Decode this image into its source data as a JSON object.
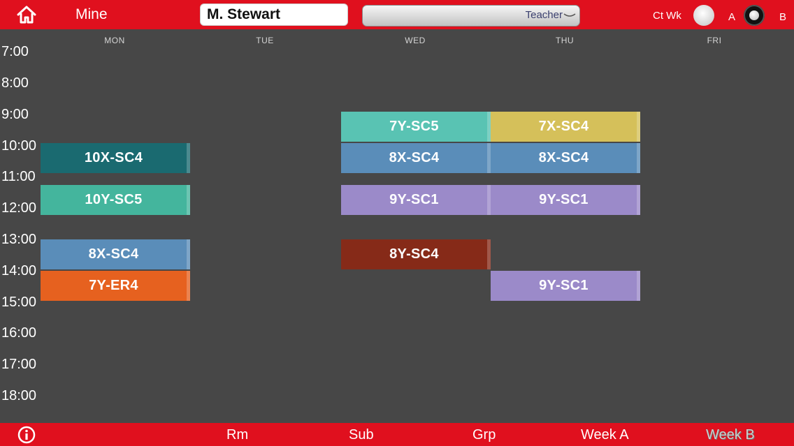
{
  "header": {
    "mine_label": "Mine",
    "name_value": "M. Stewart",
    "type_value": "Teacher",
    "ctwk_label": "Ct Wk",
    "week_a_label": "A",
    "week_b_label": "B"
  },
  "days": [
    "MON",
    "TUE",
    "WED",
    "THU",
    "FRI"
  ],
  "times": [
    "7:00",
    "8:00",
    "9:00",
    "10:00",
    "11:00",
    "12:00",
    "13:00",
    "14:00",
    "15:00",
    "16:00",
    "17:00",
    "18:00"
  ],
  "lessons": [
    {
      "label": "10X-SC4",
      "day": "MON",
      "start": "10:00",
      "color": "#1a6a70"
    },
    {
      "label": "10Y-SC5",
      "day": "MON",
      "start": "11:20",
      "color": "#44b59d"
    },
    {
      "label": "8X-SC4",
      "day": "MON",
      "start": "13:00",
      "color": "#5a8db9"
    },
    {
      "label": "7Y-ER4",
      "day": "MON",
      "start": "14:00",
      "color": "#e6611f"
    },
    {
      "label": "7Y-SC5",
      "day": "WED",
      "start": "9:00",
      "color": "#59c3b3"
    },
    {
      "label": "8X-SC4",
      "day": "WED",
      "start": "10:00",
      "color": "#5a8db9"
    },
    {
      "label": "9Y-SC1",
      "day": "WED",
      "start": "11:20",
      "color": "#9b8ac9"
    },
    {
      "label": "8Y-SC4",
      "day": "WED",
      "start": "13:00",
      "color": "#862a18"
    },
    {
      "label": "7X-SC4",
      "day": "THU",
      "start": "9:00",
      "color": "#d5c05a"
    },
    {
      "label": "8X-SC4",
      "day": "THU",
      "start": "10:00",
      "color": "#5a8db9"
    },
    {
      "label": "9Y-SC1",
      "day": "THU",
      "start": "11:20",
      "color": "#9b8ac9"
    },
    {
      "label": "9Y-SC1",
      "day": "THU",
      "start": "14:00",
      "color": "#9b8ac9"
    }
  ],
  "footer": {
    "tabs": [
      "Rm",
      "Sub",
      "Grp",
      "Week A",
      "Week B"
    ]
  },
  "colors": {
    "bar": "#e0101e",
    "background": "#474747"
  },
  "icons": {
    "home": "home-icon",
    "info": "info-icon",
    "dropdown": "chevron-down-icon"
  }
}
